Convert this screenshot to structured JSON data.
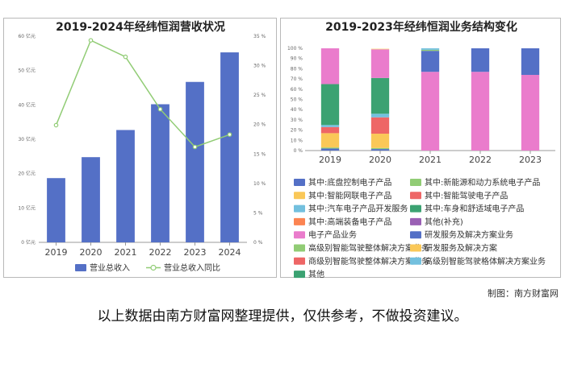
{
  "credit": "制图：南方财富网",
  "disclaimer": "以上数据由南方财富网整理提供，仅供参考，不做投资建议。",
  "chart_data": [
    {
      "type": "bar",
      "title": "2019-2024年经纬恒润营收状况",
      "categories": [
        "2019",
        "2020",
        "2021",
        "2022",
        "2023",
        "2024"
      ],
      "ylim": [
        0,
        60
      ],
      "y_ticks": [
        "0 亿元",
        "10 亿元",
        "20 亿元",
        "30 亿元",
        "40 亿元",
        "50 亿元",
        "60 亿元"
      ],
      "y2lim": [
        0,
        35
      ],
      "y2_ticks": [
        "0 %",
        "5 %",
        "10 %",
        "15 %",
        "20 %",
        "25 %",
        "30 %",
        "35 %"
      ],
      "grid": false,
      "legend_position": "bottom",
      "series": [
        {
          "name": "营业总收入",
          "type": "bar",
          "axis": "left",
          "color": "#5470c6",
          "values": [
            18.7,
            24.8,
            32.7,
            40.2,
            46.7,
            55.3
          ]
        },
        {
          "name": "营业总收入同比",
          "type": "line",
          "axis": "right",
          "color": "#91cc75",
          "values": [
            19.9,
            34.3,
            31.5,
            22.6,
            16.2,
            18.3
          ]
        }
      ]
    },
    {
      "type": "bar",
      "stacked": true,
      "normalized": true,
      "title": "2019-2023年经纬恒润业务结构变化",
      "categories": [
        "2019",
        "2020",
        "2021",
        "2022",
        "2023"
      ],
      "ylim": [
        0,
        100
      ],
      "y_ticks": [
        "0 %",
        "10 %",
        "20 %",
        "30 %",
        "40 %",
        "50 %",
        "60 %",
        "70 %",
        "80 %",
        "90 %",
        "100 %"
      ],
      "grid": false,
      "legend_position": "bottom",
      "series": [
        {
          "name": "其中:底盘控制电子产品",
          "color": "#5470c6",
          "values": [
            2,
            1.5,
            0,
            0,
            0
          ]
        },
        {
          "name": "其中:新能源和动力系统电子产品",
          "color": "#91cc75",
          "values": [
            1,
            1,
            0,
            0,
            0
          ]
        },
        {
          "name": "其中:智能网联电子产品",
          "color": "#fac858",
          "values": [
            14,
            14,
            0,
            0,
            0
          ]
        },
        {
          "name": "其中:智能驾驶电子产品",
          "color": "#ee6666",
          "values": [
            6,
            16,
            0,
            0,
            0
          ]
        },
        {
          "name": "其中:汽车电子产品开发服务",
          "color": "#73c0de",
          "values": [
            2,
            3.5,
            0,
            0,
            0
          ]
        },
        {
          "name": "其中:车身和舒适域电子产品",
          "color": "#3ba272",
          "values": [
            40,
            35,
            0,
            0,
            0
          ]
        },
        {
          "name": "其中:高端装备电子产品",
          "color": "#fc8452",
          "values": [
            0,
            0,
            0,
            0,
            0
          ]
        },
        {
          "name": "其他(补充)",
          "color": "#9a60b4",
          "values": [
            0,
            0,
            0,
            0,
            0
          ]
        },
        {
          "name": "电子产品业务",
          "color": "#ea7ccc",
          "values": [
            35,
            28,
            77,
            77,
            74
          ]
        },
        {
          "name": "研发服务及解决方案业务",
          "color": "#5470c6",
          "values": [
            0,
            0,
            20.5,
            23,
            26
          ]
        },
        {
          "name": "高级别智能驾驶整体解决方案业务",
          "color": "#91cc75",
          "values": [
            0,
            0,
            1,
            0,
            0
          ]
        },
        {
          "name": "研发服务及解决方案",
          "color": "#fac858",
          "values": [
            0,
            0.5,
            0,
            0,
            0
          ]
        },
        {
          "name": "商级别智能驾驶整体解决方案业务",
          "color": "#ee6666",
          "values": [
            0,
            0,
            0,
            0,
            0
          ]
        },
        {
          "name": "高级别智能驾驶格体解决方案业务",
          "color": "#73c0de",
          "values": [
            0,
            0,
            1.5,
            0,
            0
          ]
        },
        {
          "name": "其他",
          "color": "#3ba272",
          "values": [
            0,
            0,
            0,
            0,
            0
          ]
        }
      ]
    }
  ]
}
